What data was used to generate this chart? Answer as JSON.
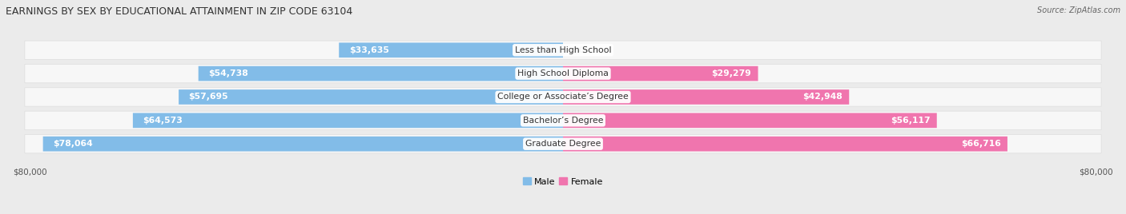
{
  "title": "EARNINGS BY SEX BY EDUCATIONAL ATTAINMENT IN ZIP CODE 63104",
  "source": "Source: ZipAtlas.com",
  "categories": [
    "Less than High School",
    "High School Diploma",
    "College or Associate’s Degree",
    "Bachelor’s Degree",
    "Graduate Degree"
  ],
  "male_values": [
    33635,
    54738,
    57695,
    64573,
    78064
  ],
  "female_values": [
    0,
    29279,
    42948,
    56117,
    66716
  ],
  "male_color": "#82BCE8",
  "female_color": "#F075AE",
  "max_value": 80000,
  "bg_color": "#EBEBEB",
  "row_bg_color": "#F7F7F7",
  "title_fontsize": 9,
  "label_fontsize": 7.8,
  "axis_label_fontsize": 7.5,
  "legend_fontsize": 8,
  "value_color_inside": "white",
  "value_color_outside": "#555555"
}
